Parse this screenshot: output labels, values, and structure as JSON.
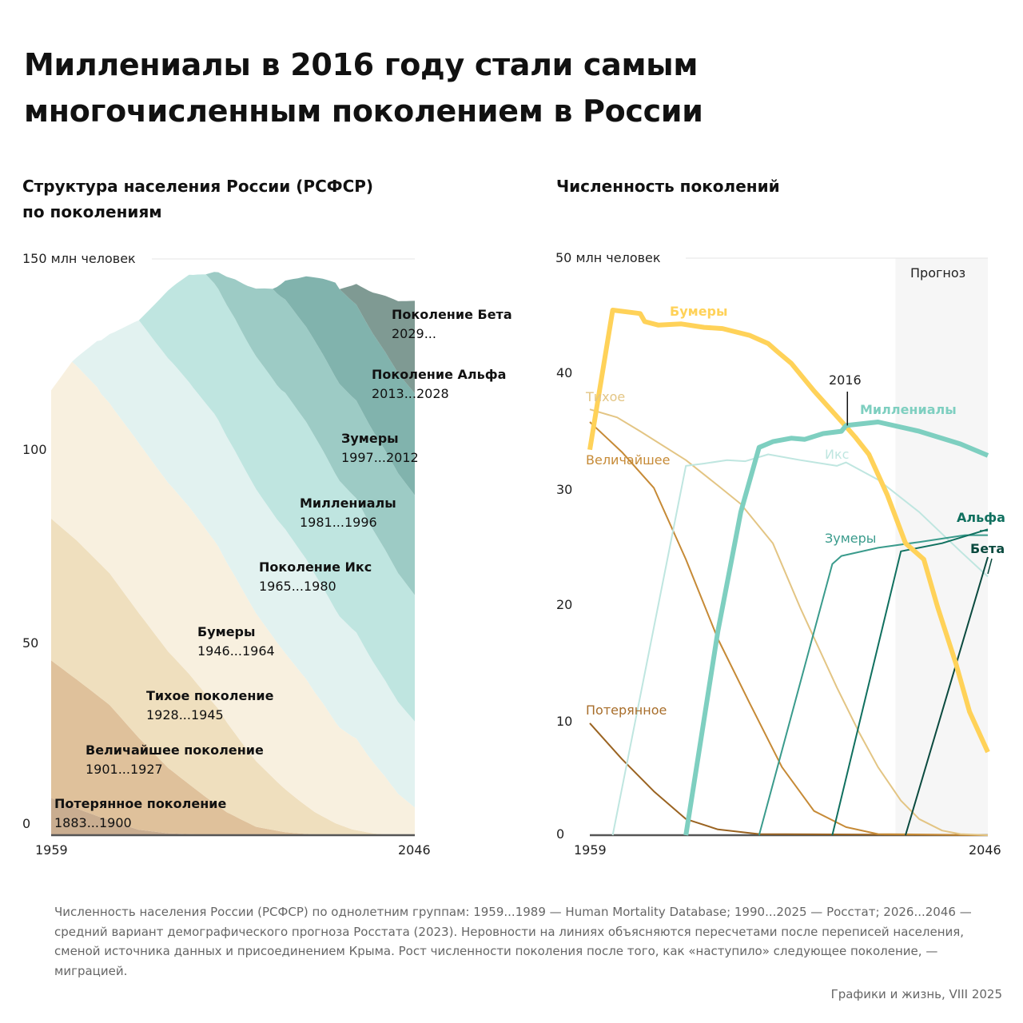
{
  "title": "Миллениалы в 2016 году стали самым многочисленным поколением в России",
  "left": {
    "subtitle_line1": "Структура населения России (РСФСР)",
    "subtitle_line2": "по поколениям",
    "y_unit_label": "150 млн человек",
    "y_ticks": [
      "100",
      "50",
      "0"
    ],
    "x_ticks": [
      "1959",
      "2046"
    ],
    "labels": [
      {
        "name": "Поколение Бета",
        "years": "2029..."
      },
      {
        "name": "Поколение Альфа",
        "years": "2013...2028"
      },
      {
        "name": "Зумеры",
        "years": "1997...2012"
      },
      {
        "name": "Миллениалы",
        "years": "1981...1996"
      },
      {
        "name": "Поколение Икс",
        "years": "1965...1980"
      },
      {
        "name": "Бумеры",
        "years": "1946...1964"
      },
      {
        "name": "Тихое поколение",
        "years": "1928...1945"
      },
      {
        "name": "Величайшее поколение",
        "years": "1901...1927"
      },
      {
        "name": "Потерянное поколение",
        "years": "1883...1900"
      }
    ]
  },
  "right": {
    "subtitle": "Численность поколений",
    "y_unit_label": "50 млн человек",
    "y_ticks": [
      "40",
      "30",
      "20",
      "10",
      "0"
    ],
    "x_ticks": [
      "1959",
      "2046"
    ],
    "forecast_label": "Прогноз",
    "marker_label": "2016",
    "series_labels": {
      "boomers": "Бумеры",
      "silent": "Тихое",
      "greatest": "Величайшее",
      "lost": "Потерянное",
      "x": "Икс",
      "millennials": "Миллениалы",
      "zoomers": "Зумеры",
      "alpha": "Альфа",
      "beta": "Бета"
    }
  },
  "footnote": "Численность населения России (РСФСР) по однолетним группам: 1959...1989 — Human Mortality Database; 1990...2025 — Росстат; 2026...2046 — средний вариант демографического прогноза Росстата (2023). Неровности на линиях объясняются пересчетами после переписей населения, сменой источника данных и присоединением Крыма. Рост численности поколения после того, как «наступило» следующее поколение, — миграцией.",
  "credit": "Графики и жизнь, VIII 2025",
  "chart_data": [
    {
      "type": "area",
      "stacked": true,
      "title": "Структура населения России (РСФСР) по поколениям",
      "ylabel": "150 млн человек",
      "xlim": [
        1959,
        2046
      ],
      "ylim": [
        0,
        150
      ],
      "stack_order": [
        "lost",
        "greatest",
        "silent",
        "boomers",
        "x",
        "millennials",
        "zoomers",
        "alpha",
        "beta"
      ],
      "colors": {
        "lost": "#c9ad90",
        "greatest": "#dfc19b",
        "silent": "#efdfbe",
        "boomers": "#f8f0df",
        "x": "#e2f2f0",
        "millennials": "#bfe5e0",
        "zoomers": "#9dcbc5",
        "alpha": "#81b3ad",
        "beta": "#7f9a93"
      },
      "series_source": "same values as chart 2"
    },
    {
      "type": "line",
      "title": "Численность поколений",
      "ylabel": "50 млн человек",
      "xlim": [
        1959,
        2046
      ],
      "ylim": [
        0,
        50
      ],
      "forecast_from": 2026,
      "annotation": {
        "x": 2016,
        "label": "2016"
      },
      "series": [
        {
          "key": "boomers",
          "name": "Бумеры",
          "color": "#ffd259",
          "width": 6,
          "points": [
            [
              1959,
              33.4
            ],
            [
              1964,
              45.5
            ],
            [
              1970,
              45.2
            ],
            [
              1971,
              44.5
            ],
            [
              1974,
              44.2
            ],
            [
              1979,
              44.3
            ],
            [
              1984,
              44.0
            ],
            [
              1988,
              43.9
            ],
            [
              1994,
              43.3
            ],
            [
              1998,
              42.6
            ],
            [
              2000,
              41.9
            ],
            [
              2003,
              40.9
            ],
            [
              2008,
              38.5
            ],
            [
              2015,
              35.4
            ],
            [
              2017,
              34.5
            ],
            [
              2020,
              33.0
            ],
            [
              2024,
              29.5
            ],
            [
              2028,
              25.3
            ],
            [
              2032,
              23.9
            ],
            [
              2035,
              19.8
            ],
            [
              2039,
              14.9
            ],
            [
              2042,
              10.7
            ],
            [
              2046,
              7.2
            ]
          ]
        },
        {
          "key": "silent",
          "name": "Тихое",
          "color": "#e3c584",
          "width": 2,
          "points": [
            [
              1959,
              36.9
            ],
            [
              1965,
              36.2
            ],
            [
              1970,
              35.0
            ],
            [
              1980,
              32.5
            ],
            [
              1987,
              30.3
            ],
            [
              1992,
              28.7
            ],
            [
              1999,
              25.3
            ],
            [
              2005,
              19.7
            ],
            [
              2013,
              12.8
            ],
            [
              2018,
              8.8
            ],
            [
              2022,
              5.9
            ],
            [
              2027,
              3.0
            ],
            [
              2031,
              1.4
            ],
            [
              2036,
              0.4
            ],
            [
              2040,
              0.1
            ],
            [
              2046,
              0
            ]
          ]
        },
        {
          "key": "greatest",
          "name": "Величайшее",
          "color": "#c68a36",
          "width": 2,
          "points": [
            [
              1959,
              35.8
            ],
            [
              1966,
              33.2
            ],
            [
              1973,
              30.1
            ],
            [
              1980,
              23.9
            ],
            [
              1987,
              17.0
            ],
            [
              1994,
              11.4
            ],
            [
              2001,
              5.9
            ],
            [
              2008,
              2.1
            ],
            [
              2015,
              0.7
            ],
            [
              2022,
              0.1
            ],
            [
              2046,
              0
            ]
          ]
        },
        {
          "key": "lost",
          "name": "Потерянное",
          "color": "#9a6321",
          "width": 2,
          "points": [
            [
              1959,
              9.7
            ],
            [
              1966,
              6.6
            ],
            [
              1973,
              3.8
            ],
            [
              1980,
              1.4
            ],
            [
              1987,
              0.5
            ],
            [
              1996,
              0.1
            ],
            [
              2046,
              0
            ]
          ]
        },
        {
          "key": "x",
          "name": "Икс",
          "color": "#bfe6e0",
          "width": 2,
          "points": [
            [
              1964,
              0
            ],
            [
              1980,
              32.0
            ],
            [
              1984,
              32.2
            ],
            [
              1989,
              32.5
            ],
            [
              1993,
              32.4
            ],
            [
              1998,
              33.0
            ],
            [
              2005,
              32.5
            ],
            [
              2013,
              32.0
            ],
            [
              2015,
              32.3
            ],
            [
              2022,
              30.8
            ],
            [
              2031,
              28.0
            ],
            [
              2040,
              24.6
            ],
            [
              2046,
              22.4
            ]
          ]
        },
        {
          "key": "millennials",
          "name": "Миллениалы",
          "color": "#7ecfc0",
          "width": 6,
          "points": [
            [
              1980,
              0
            ],
            [
              1987,
              17.7
            ],
            [
              1992,
              28.0
            ],
            [
              1996,
              33.6
            ],
            [
              1999,
              34.1
            ],
            [
              2003,
              34.4
            ],
            [
              2006,
              34.3
            ],
            [
              2010,
              34.8
            ],
            [
              2014,
              35.0
            ],
            [
              2015,
              35.5
            ],
            [
              2022,
              35.8
            ],
            [
              2031,
              35.0
            ],
            [
              2040,
              33.9
            ],
            [
              2046,
              32.9
            ]
          ]
        },
        {
          "key": "zoomers",
          "name": "Зумеры",
          "color": "#3a9b8c",
          "width": 2,
          "points": [
            [
              1996,
              0
            ],
            [
              2012,
              23.5
            ],
            [
              2014,
              24.2
            ],
            [
              2022,
              24.9
            ],
            [
              2031,
              25.4
            ],
            [
              2041,
              26.0
            ],
            [
              2046,
              26.0
            ]
          ]
        },
        {
          "key": "alpha",
          "name": "Альфа",
          "color": "#10705f",
          "width": 2,
          "points": [
            [
              2012,
              0
            ],
            [
              2027,
              24.6
            ],
            [
              2036,
              25.3
            ],
            [
              2046,
              26.5
            ]
          ]
        },
        {
          "key": "beta",
          "name": "Бета",
          "color": "#0b4a3f",
          "width": 2,
          "points": [
            [
              2028,
              0
            ],
            [
              2046,
              24.1
            ]
          ]
        }
      ]
    }
  ]
}
